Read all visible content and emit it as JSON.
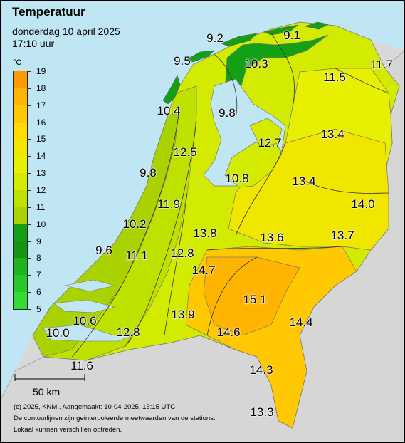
{
  "header": {
    "title": "Temperatuur",
    "date": "donderdag 10 april 2025",
    "time": "17:10 uur"
  },
  "legend": {
    "unit": "°C",
    "ticks": [
      "19",
      "18",
      "17",
      "16",
      "15",
      "14",
      "13",
      "12",
      "11",
      "10",
      "9",
      "8",
      "7",
      "6",
      "5"
    ],
    "colors": [
      "#ff9900",
      "#ffb400",
      "#ffc800",
      "#ffdc00",
      "#f0e600",
      "#e6f000",
      "#d2eb00",
      "#bee100",
      "#aad200",
      "#14a014",
      "#149614",
      "#1eb41e",
      "#28c828",
      "#32dc32"
    ]
  },
  "stations": [
    {
      "label": "9.2"
    },
    {
      "label": "9.1"
    },
    {
      "label": "9.5"
    },
    {
      "label": "10.3"
    },
    {
      "label": "11.5"
    },
    {
      "label": "11.7"
    },
    {
      "label": "10.4"
    },
    {
      "label": "9.8"
    },
    {
      "label": "12.7"
    },
    {
      "label": "13.4"
    },
    {
      "label": "12.5"
    },
    {
      "label": "9.8"
    },
    {
      "label": "10.8"
    },
    {
      "label": "13.4"
    },
    {
      "label": "14.0"
    },
    {
      "label": "11.9"
    },
    {
      "label": "10.2"
    },
    {
      "label": "13.8"
    },
    {
      "label": "13.6"
    },
    {
      "label": "13.7"
    },
    {
      "label": "9.6"
    },
    {
      "label": "11.1"
    },
    {
      "label": "12.8"
    },
    {
      "label": "14.7"
    },
    {
      "label": "15.1"
    },
    {
      "label": "13.9"
    },
    {
      "label": "14.4"
    },
    {
      "label": "10.6"
    },
    {
      "label": "12.8"
    },
    {
      "label": "14.6"
    },
    {
      "label": "10.0"
    },
    {
      "label": "11.6"
    },
    {
      "label": "14.3"
    },
    {
      "label": "13.3"
    }
  ],
  "scale_bar": {
    "label": "50 km"
  },
  "footer": {
    "line1": "(c) 2025, KNMI. Aangemaakt: 10-04-2025, 15:15 UTC",
    "line2": "De contourlijnen zijn geinterpoleerde meetwaarden van de stations.",
    "line3": "Lokaal kunnen verschillen optreden."
  }
}
